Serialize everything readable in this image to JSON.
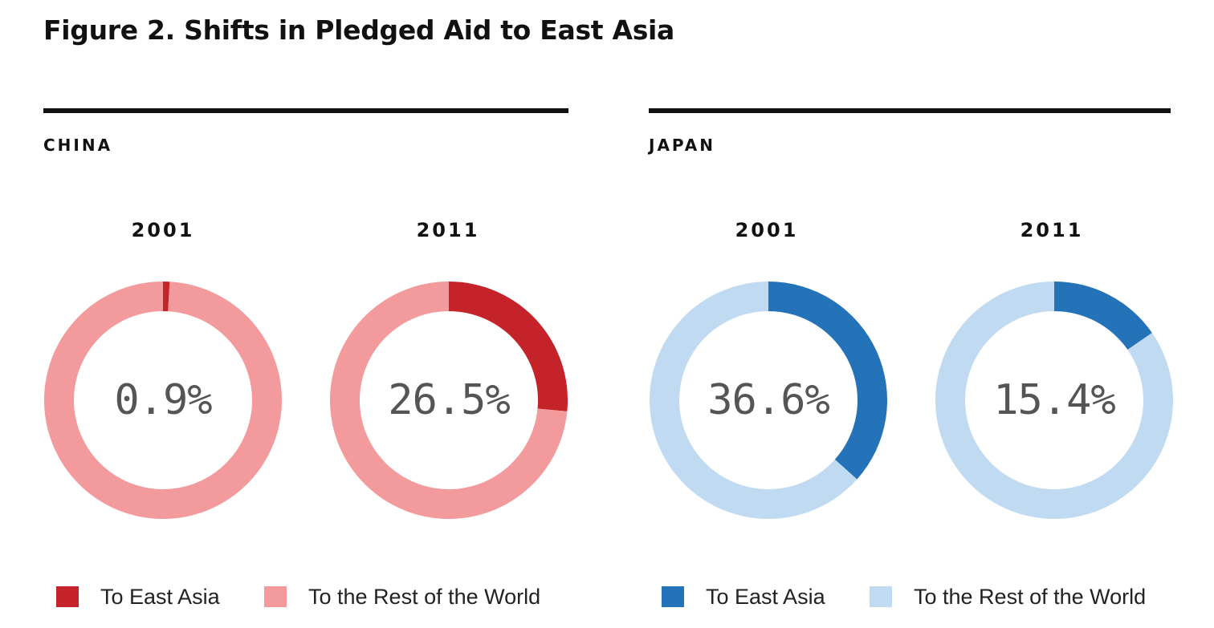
{
  "title": "Figure 2.  Shifts in Pledged Aid to East Asia",
  "chart_data": [
    {
      "type": "pie",
      "panel": "CHINA",
      "year": "2001",
      "label": "0.9%",
      "categories": [
        "To East Asia",
        "To the Rest of the World"
      ],
      "values": [
        0.9,
        99.1
      ],
      "colors": [
        "#C4232A",
        "#F39A9C"
      ]
    },
    {
      "type": "pie",
      "panel": "CHINA",
      "year": "2011",
      "label": "26.5%",
      "categories": [
        "To East Asia",
        "To the Rest of the World"
      ],
      "values": [
        26.5,
        73.5
      ],
      "colors": [
        "#C4232A",
        "#F39A9C"
      ]
    },
    {
      "type": "pie",
      "panel": "JAPAN",
      "year": "2001",
      "label": "36.6%",
      "categories": [
        "To East Asia",
        "To the Rest of the World"
      ],
      "values": [
        36.6,
        63.4
      ],
      "colors": [
        "#2473B8",
        "#C0DAF1"
      ]
    },
    {
      "type": "pie",
      "panel": "JAPAN",
      "year": "2011",
      "label": "15.4%",
      "categories": [
        "To East Asia",
        "To the Rest of the World"
      ],
      "values": [
        15.4,
        84.6
      ],
      "colors": [
        "#2473B8",
        "#C0DAF1"
      ]
    }
  ],
  "panels": {
    "china": {
      "name": "CHINA",
      "legend": [
        {
          "label": "To East Asia",
          "color": "#C4232A"
        },
        {
          "label": "To the Rest of the World",
          "color": "#F39A9C"
        }
      ]
    },
    "japan": {
      "name": "JAPAN",
      "legend": [
        {
          "label": "To East Asia",
          "color": "#2473B8"
        },
        {
          "label": "To the Rest of the World",
          "color": "#C0DAF1"
        }
      ]
    }
  }
}
